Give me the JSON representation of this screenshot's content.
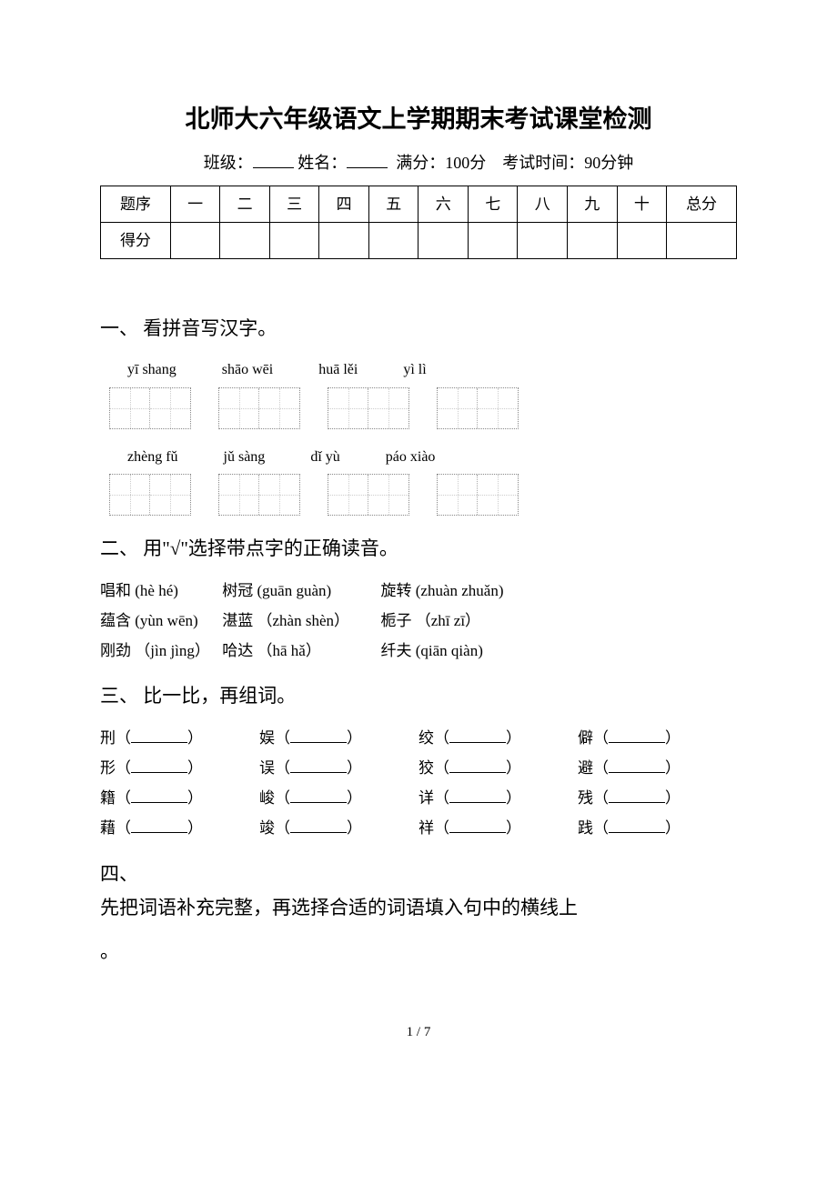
{
  "title": "北师大六年级语文上学期期末考试课堂检测",
  "subtitle": {
    "class_label": "班级：",
    "name_label": "姓名：",
    "full_score": "满分：100分",
    "duration": "考试时间：90分钟"
  },
  "score_table": {
    "row1": [
      "题序",
      "一",
      "二",
      "三",
      "四",
      "五",
      "六",
      "七",
      "八",
      "九",
      "十",
      "总分"
    ],
    "row2_label": "得分"
  },
  "sections": {
    "s1": {
      "heading": "一、 看拼音写汉字。",
      "pinyin_row1": [
        "yī shang",
        "shāo wēi",
        "huā lěi",
        "yì lì"
      ],
      "pinyin_row2": [
        "zhèng fǔ",
        "jǔ sàng",
        "dǐ yù",
        "páo xiào"
      ]
    },
    "s2": {
      "heading": "二、 用\"√\"选择带点字的正确读音。",
      "lines": [
        [
          {
            "w": "唱和",
            "p": "(hè hé)",
            "wd": 130
          },
          {
            "w": "树冠",
            "p": "(guān guàn)",
            "wd": 170
          },
          {
            "w": "旋转",
            "p": "(zhuàn zhuǎn)",
            "wd": 170
          }
        ],
        [
          {
            "w": "蕴含",
            "p": "(yùn wēn)",
            "wd": 130
          },
          {
            "w": "湛蓝",
            "p": "（zhàn shèn）",
            "wd": 170
          },
          {
            "w": "栀子",
            "p": "（zhī zī）",
            "wd": 170
          }
        ],
        [
          {
            "w": "刚劲",
            "p": "（jìn jìng）",
            "wd": 130
          },
          {
            "w": "哈达",
            "p": "（hā hǎ）",
            "wd": 170
          },
          {
            "w": "纤夫",
            "p": "(qiān qiàn)",
            "wd": 170
          }
        ]
      ]
    },
    "s3": {
      "heading": "三、 比一比，再组词。",
      "rows": [
        [
          "刑",
          "娱",
          "绞",
          "僻"
        ],
        [
          "形",
          "误",
          "狡",
          "避"
        ],
        [
          "籍",
          "峻",
          "详",
          "残"
        ],
        [
          "藉",
          "竣",
          "祥",
          "践"
        ]
      ]
    },
    "s4": {
      "heading": "四、",
      "sub": "先把词语补充完整，再选择合适的词语填入句中的横线上",
      "sub2": "。"
    }
  },
  "page_num": "1 / 7"
}
